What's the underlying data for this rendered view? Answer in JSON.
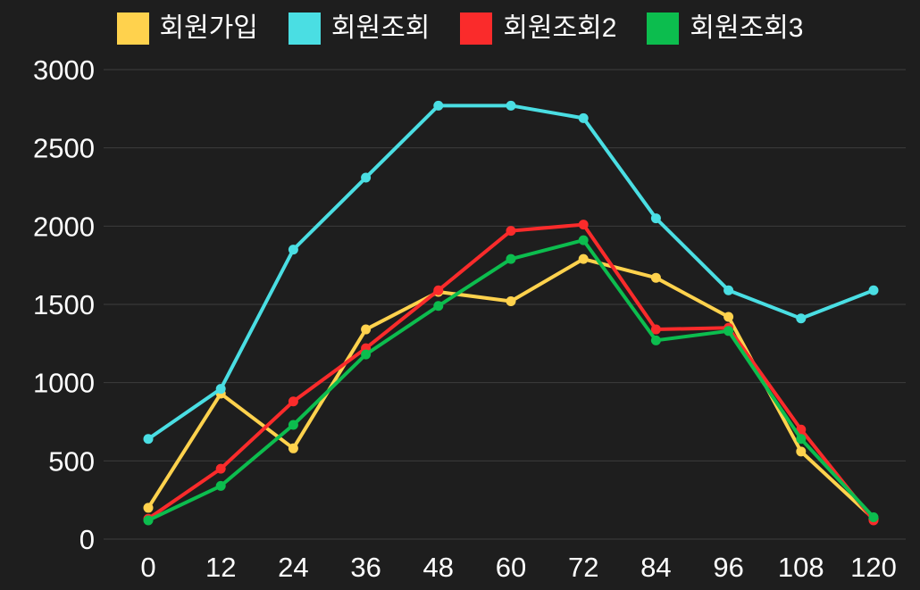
{
  "chart_data": {
    "type": "line",
    "title": "",
    "xlabel": "",
    "ylabel": "",
    "x": [
      0,
      12,
      24,
      36,
      48,
      60,
      72,
      84,
      96,
      108,
      120
    ],
    "series": [
      {
        "name": "회원가입",
        "color": "#ffd24d",
        "values": [
          200,
          930,
          580,
          1340,
          1580,
          1520,
          1790,
          1670,
          1420,
          560,
          130
        ]
      },
      {
        "name": "회원조회",
        "color": "#4adee3",
        "values": [
          640,
          960,
          1850,
          2310,
          2770,
          2770,
          2690,
          2050,
          1590,
          1410,
          1590
        ]
      },
      {
        "name": "회원조회2",
        "color": "#fa2b2b",
        "values": [
          130,
          450,
          880,
          1220,
          1590,
          1970,
          2010,
          1340,
          1350,
          700,
          120
        ]
      },
      {
        "name": "회원조회3",
        "color": "#0cbd4e",
        "values": [
          120,
          340,
          730,
          1180,
          1490,
          1790,
          1910,
          1270,
          1330,
          640,
          140
        ]
      }
    ],
    "ylim": [
      0,
      3000
    ],
    "yticks": [
      0,
      500,
      1000,
      1500,
      2000,
      2500,
      3000
    ],
    "xticks": [
      0,
      12,
      24,
      36,
      48,
      60,
      72,
      84,
      96,
      108,
      120
    ],
    "grid": true,
    "legend_position": "top",
    "colors": {
      "background": "#1e1e1e",
      "gridline": "#3d3d3d",
      "text": "#ffffff"
    }
  }
}
